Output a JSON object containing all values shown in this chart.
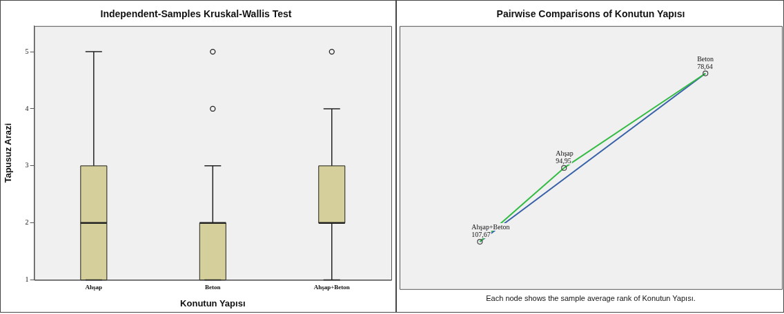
{
  "chart_data": [
    {
      "type": "box",
      "title": "Independent-Samples Kruskal-Wallis Test",
      "xlabel": "Konutun Yapısı",
      "ylabel": "Tapusuz Arazi",
      "categories": [
        "Ahşap",
        "Beton",
        "Ahşap+Beton"
      ],
      "color": "#d4cf9b",
      "boxes": [
        {
          "low": 1,
          "q1": 1,
          "median": 2,
          "q3": 3,
          "high": 5
        },
        {
          "low": 1,
          "q1": 1,
          "median": 2,
          "q3": 2,
          "high": 3,
          "outliers": [
            4,
            5
          ]
        },
        {
          "low": 1,
          "q1": 2,
          "median": 2,
          "q3": 3,
          "high": 4,
          "outliers": [
            5
          ]
        }
      ],
      "ylim": [
        1,
        5.45
      ],
      "yticks": [
        1,
        2,
        3,
        4,
        5
      ],
      "grid": false,
      "legend": false
    },
    {
      "type": "other",
      "title": "Pairwise Comparisons of Konutun Yapısı",
      "categories": [
        "Ahşap",
        "Beton",
        "Ahşap+Beton"
      ],
      "values": [
        94.95,
        78.64,
        107.67
      ],
      "value_labels": [
        "94,95",
        "78,64",
        "107,67"
      ],
      "annotations": [
        "Each node shows the sample average rank of Konutun Yapısı."
      ]
    }
  ]
}
